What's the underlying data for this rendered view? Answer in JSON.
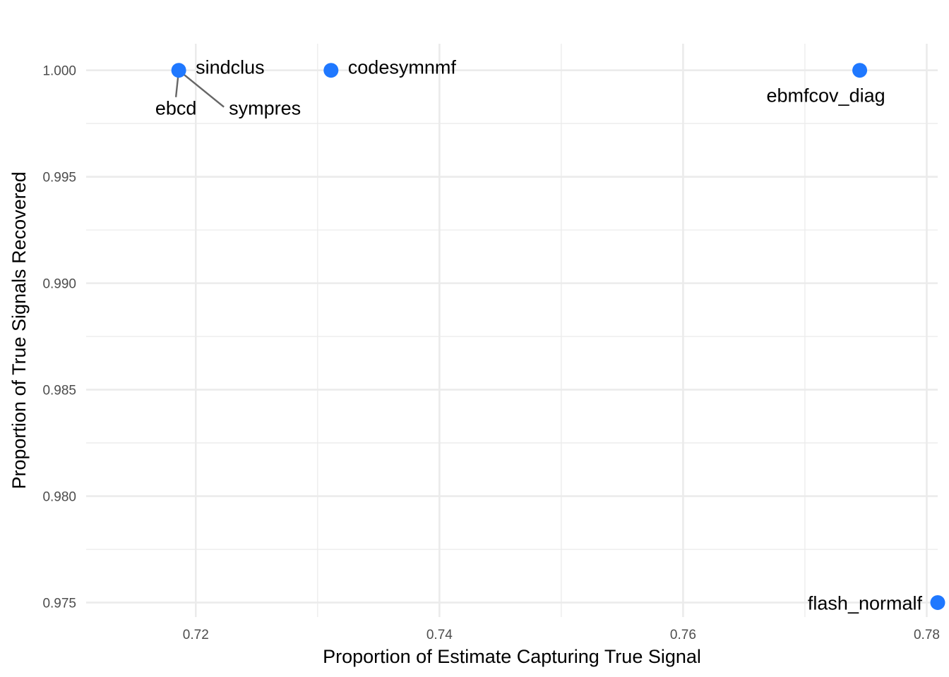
{
  "chart_data": {
    "type": "scatter",
    "title": "",
    "xlabel": "Proportion of Estimate Capturing True Signal",
    "ylabel": "Proportion of True Signals Recovered",
    "xlim": [
      0.711,
      0.7809
    ],
    "ylim": [
      0.97432,
      1.00125
    ],
    "x_ticks": [
      0.72,
      0.74,
      0.76,
      0.78
    ],
    "x_tick_labels": [
      "0.72",
      "0.74",
      "0.76",
      "0.78"
    ],
    "y_ticks": [
      0.975,
      0.98,
      0.985,
      0.99,
      0.995,
      1.0
    ],
    "y_tick_labels": [
      "0.975",
      "0.980",
      "0.985",
      "0.990",
      "0.995",
      "1.000"
    ],
    "grid": true,
    "legend": "none",
    "point_color": "#1f78ff",
    "leader_color": "#666666",
    "points": [
      {
        "label": "sindclus",
        "x": 0.7186,
        "y": 1.0,
        "label_side": "right"
      },
      {
        "label": "ebcd",
        "x": 0.7186,
        "y": 1.0,
        "label_side": "below-left",
        "leader": true
      },
      {
        "label": "sympres",
        "x": 0.7186,
        "y": 1.0,
        "label_side": "below-right",
        "leader": true
      },
      {
        "label": "codesymnmf",
        "x": 0.7311,
        "y": 1.0,
        "label_side": "right"
      },
      {
        "label": "ebmfcov_diag",
        "x": 0.7745,
        "y": 1.0,
        "label_side": "below"
      },
      {
        "label": "flash_normalf",
        "x": 0.7809,
        "y": 0.975,
        "label_side": "left"
      }
    ]
  }
}
